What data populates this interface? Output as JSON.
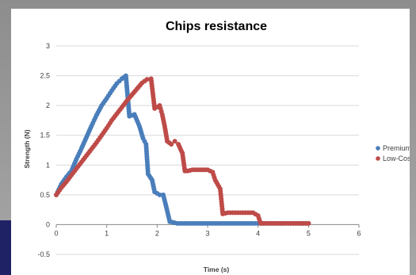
{
  "chart_data": {
    "type": "scatter",
    "title": "Chips resistance",
    "xlabel": "Time (s)",
    "ylabel": "Strength (N)",
    "xlim": [
      0,
      6
    ],
    "ylim": [
      -0.5,
      3
    ],
    "x_ticks": [
      0,
      1,
      2,
      3,
      4,
      5,
      6
    ],
    "y_ticks": [
      -0.5,
      0,
      0.5,
      1,
      1.5,
      2,
      2.5,
      3
    ],
    "grid": "horizontal",
    "legend_position": "right",
    "series": [
      {
        "name": "Premium",
        "color": "#4a7ebb",
        "points": [
          [
            0,
            0.5
          ],
          [
            0.1,
            0.68
          ],
          [
            0.2,
            0.8
          ],
          [
            0.3,
            0.9
          ],
          [
            0.4,
            1.1
          ],
          [
            0.5,
            1.28
          ],
          [
            0.6,
            1.47
          ],
          [
            0.7,
            1.66
          ],
          [
            0.8,
            1.84
          ],
          [
            0.9,
            2.0
          ],
          [
            1.0,
            2.12
          ],
          [
            1.1,
            2.25
          ],
          [
            1.2,
            2.37
          ],
          [
            1.3,
            2.45
          ],
          [
            1.38,
            2.5
          ],
          [
            1.45,
            1.82
          ],
          [
            1.55,
            1.85
          ],
          [
            1.65,
            1.65
          ],
          [
            1.72,
            1.45
          ],
          [
            1.78,
            1.35
          ],
          [
            1.82,
            0.85
          ],
          [
            1.9,
            0.75
          ],
          [
            1.95,
            0.55
          ],
          [
            2.05,
            0.5
          ],
          [
            2.12,
            0.5
          ],
          [
            2.18,
            0.3
          ],
          [
            2.25,
            0.05
          ],
          [
            2.4,
            0.02
          ],
          [
            2.6,
            0.02
          ],
          [
            2.8,
            0.02
          ],
          [
            3.0,
            0.02
          ],
          [
            3.2,
            0.02
          ],
          [
            3.4,
            0.02
          ],
          [
            3.6,
            0.02
          ],
          [
            3.8,
            0.02
          ],
          [
            4.0,
            0.02
          ],
          [
            4.2,
            0.02
          ],
          [
            4.4,
            0.02
          ],
          [
            4.6,
            0.02
          ],
          [
            4.8,
            0.02
          ],
          [
            5.0,
            0.02
          ]
        ]
      },
      {
        "name": "Low-Cost",
        "color": "#be4b48",
        "points": [
          [
            0,
            0.5
          ],
          [
            0.1,
            0.62
          ],
          [
            0.2,
            0.72
          ],
          [
            0.3,
            0.83
          ],
          [
            0.4,
            0.94
          ],
          [
            0.5,
            1.05
          ],
          [
            0.6,
            1.16
          ],
          [
            0.7,
            1.27
          ],
          [
            0.8,
            1.38
          ],
          [
            0.9,
            1.5
          ],
          [
            1.0,
            1.62
          ],
          [
            1.1,
            1.75
          ],
          [
            1.2,
            1.86
          ],
          [
            1.3,
            1.97
          ],
          [
            1.4,
            2.08
          ],
          [
            1.5,
            2.18
          ],
          [
            1.6,
            2.28
          ],
          [
            1.7,
            2.38
          ],
          [
            1.8,
            2.44
          ],
          [
            1.88,
            2.45
          ],
          [
            1.95,
            1.95
          ],
          [
            2.05,
            2.0
          ],
          [
            2.1,
            1.85
          ],
          [
            2.15,
            1.65
          ],
          [
            2.2,
            1.4
          ],
          [
            2.28,
            1.35
          ],
          [
            2.35,
            1.4
          ],
          [
            2.42,
            1.35
          ],
          [
            2.5,
            1.2
          ],
          [
            2.55,
            0.9
          ],
          [
            2.6,
            0.9
          ],
          [
            2.7,
            0.92
          ],
          [
            2.8,
            0.92
          ],
          [
            2.9,
            0.92
          ],
          [
            3.0,
            0.92
          ],
          [
            3.1,
            0.88
          ],
          [
            3.15,
            0.75
          ],
          [
            3.25,
            0.6
          ],
          [
            3.3,
            0.18
          ],
          [
            3.4,
            0.2
          ],
          [
            3.5,
            0.2
          ],
          [
            3.6,
            0.2
          ],
          [
            3.7,
            0.2
          ],
          [
            3.8,
            0.2
          ],
          [
            3.9,
            0.2
          ],
          [
            4.0,
            0.15
          ],
          [
            4.05,
            0.02
          ],
          [
            4.2,
            0.02
          ],
          [
            4.4,
            0.02
          ],
          [
            4.6,
            0.02
          ],
          [
            4.8,
            0.02
          ],
          [
            5.0,
            0.02
          ]
        ]
      }
    ]
  }
}
